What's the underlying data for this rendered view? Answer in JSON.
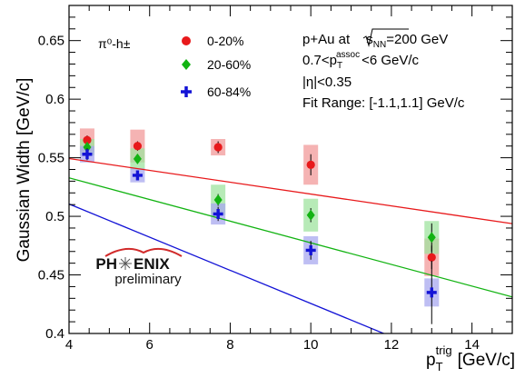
{
  "chart_data": {
    "type": "scatter",
    "xlabel": "p_T^trig [GeV/c]",
    "xlabel_parts": {
      "base": "p",
      "sub": "T",
      "sup": "trig",
      "unit": "[GeV/c]"
    },
    "ylabel": "Gaussian Width [GeV/c]",
    "xlim": [
      4,
      15
    ],
    "ylim": [
      0.4,
      0.68
    ],
    "x_ticks": [
      4,
      6,
      8,
      10,
      12,
      14
    ],
    "y_ticks": [
      0.4,
      0.45,
      0.5,
      0.55,
      0.6,
      0.65
    ],
    "x_tick_labels": [
      "4",
      "6",
      "8",
      "10",
      "12",
      "14"
    ],
    "y_tick_labels": [
      "0.4",
      "0.45",
      "0.5",
      "0.55",
      "0.6",
      "0.65"
    ],
    "grid": false,
    "legend_title": "π⁰-h±",
    "legend_position": "top-left",
    "series": [
      {
        "name": "0-20%",
        "marker": "circle",
        "color": "#e8191b",
        "band_color": "#f29a9a",
        "x": [
          4.45,
          5.7,
          7.7,
          10.0,
          13.0
        ],
        "y": [
          0.565,
          0.56,
          0.559,
          0.544,
          0.465
        ],
        "stat_err": [
          0.004,
          0.004,
          0.005,
          0.009,
          0.01
        ],
        "sys_err": [
          0.01,
          0.014,
          0.007,
          0.017,
          0.016
        ],
        "fit": [
          0.5695,
          -0.00505
        ]
      },
      {
        "name": "20-60%",
        "marker": "diamond",
        "color": "#12b312",
        "band_color": "#9fe39f",
        "x": [
          4.45,
          5.7,
          7.7,
          10.0,
          13.0
        ],
        "y": [
          0.559,
          0.549,
          0.514,
          0.501,
          0.482
        ],
        "stat_err": [
          0.004,
          0.004,
          0.005,
          0.006,
          0.012
        ],
        "sys_err": [
          0.007,
          0.009,
          0.013,
          0.014,
          0.014
        ],
        "fit": [
          0.5698,
          -0.00924
        ]
      },
      {
        "name": "60-84%",
        "marker": "cross",
        "color": "#1313d6",
        "band_color": "#a8a8ef",
        "x": [
          4.45,
          5.7,
          7.7,
          10.0,
          13.0
        ],
        "y": [
          0.553,
          0.535,
          0.502,
          0.471,
          0.435
        ],
        "stat_err": [
          0.005,
          0.004,
          0.006,
          0.008,
          0.027
        ],
        "sys_err": [
          0.007,
          0.006,
          0.009,
          0.012,
          0.012
        ],
        "fit": [
          0.5671,
          -0.01415
        ]
      }
    ],
    "annotations": {
      "system_prefix": "p+Au at ",
      "sqrt_base": "s",
      "sqrt_sub": "NN",
      "system_suffix": "=200 GeV",
      "assoc_prefix": "0.7<p",
      "assoc_sub": "T",
      "assoc_sup": "assoc",
      "assoc_suffix": "<6 GeV/c",
      "eta": "|η|<0.35",
      "fit_range": "Fit Range: [-1.1,1.1] GeV/c"
    },
    "logo": {
      "text_left": "PH",
      "text_right": "ENIX",
      "subtitle": "preliminary"
    }
  }
}
